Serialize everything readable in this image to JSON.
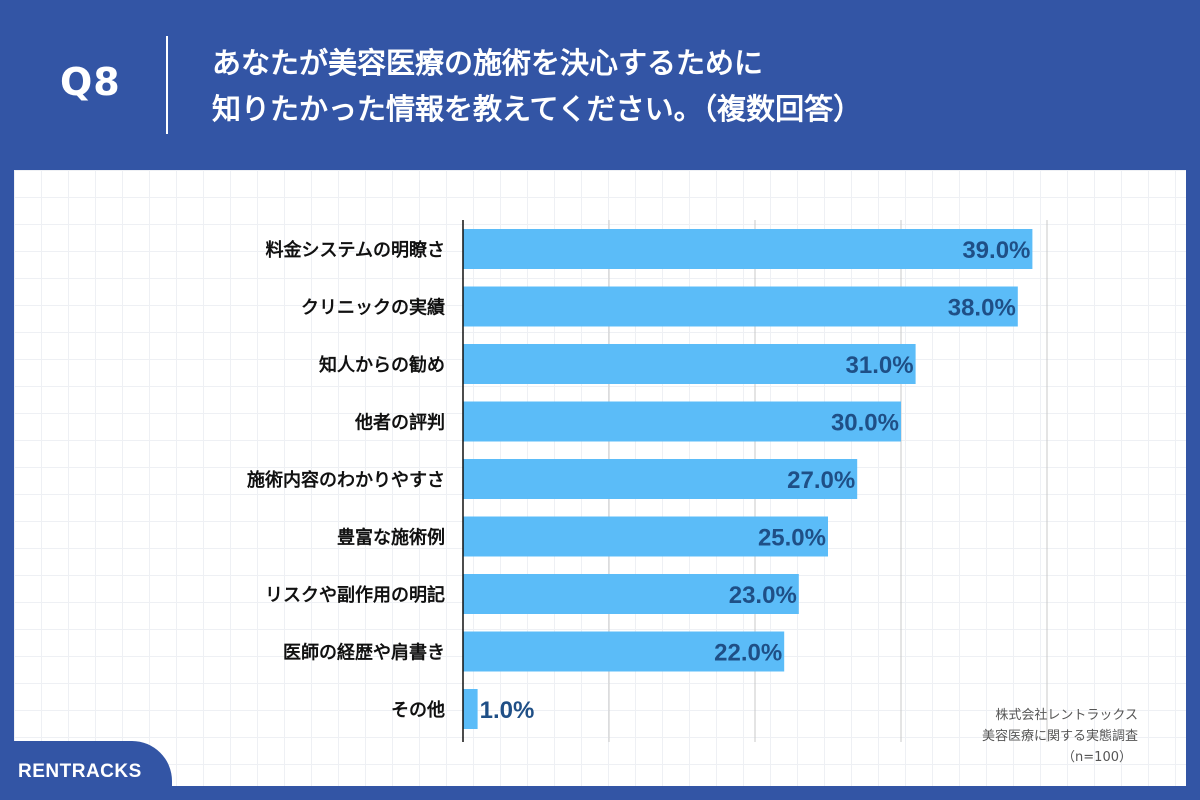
{
  "header": {
    "question_number": "Q8",
    "question_line1": "あなたが美容医療の施術を決心するために",
    "question_line2": "知りたかった情報を教えてください。（複数回答）"
  },
  "source": {
    "company": "株式会社レントラックス",
    "survey": "美容医療に関する実態調査",
    "sample": "（n=100）"
  },
  "brand": {
    "name": "RENTRACKS"
  },
  "colors": {
    "bar": "#5bbcf8",
    "value_text": "#1f4f86",
    "background": "#3355a5"
  },
  "chart_data": {
    "type": "bar",
    "orientation": "horizontal",
    "categories": [
      "料金システムの明瞭さ",
      "クリニックの実績",
      "知人からの勧め",
      "他者の評判",
      "施術内容のわかりやすさ",
      "豊富な施術例",
      "リスクや副作用の明記",
      "医師の経歴や肩書き",
      "その他"
    ],
    "values": [
      39.0,
      38.0,
      31.0,
      30.0,
      27.0,
      25.0,
      23.0,
      22.0,
      1.0
    ],
    "value_labels": [
      "39.0%",
      "38.0%",
      "31.0%",
      "30.0%",
      "27.0%",
      "25.0%",
      "23.0%",
      "22.0%",
      "1.0%"
    ],
    "xlim": [
      0,
      40
    ],
    "grid": true
  }
}
